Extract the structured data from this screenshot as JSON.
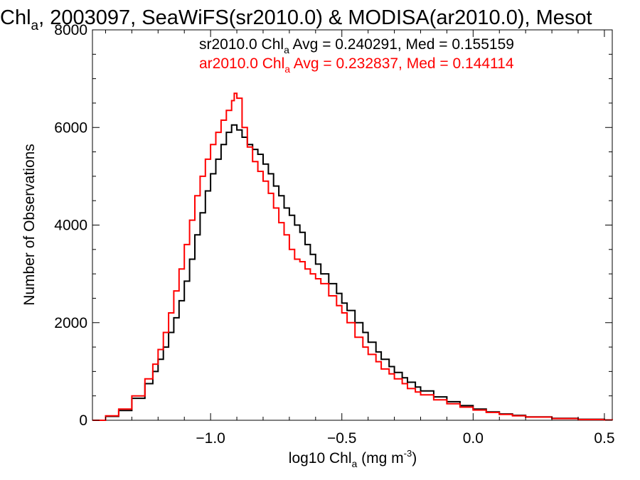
{
  "chart_data": {
    "type": "line",
    "title": {
      "main": "Chl",
      "sub": "a",
      "rest": ", 2003097, SeaWiFS(sr2010.0) & MODISA(ar2010.0), Mesot"
    },
    "xlabel": {
      "main": "log10 Chl",
      "sub": "a",
      "rest": " (mg m",
      "sup": "-3",
      "end": ")"
    },
    "ylabel": "Number of Observations",
    "xlim": [
      -1.45,
      0.53
    ],
    "ylim": [
      0,
      8000
    ],
    "x_ticks": [
      -1.0,
      -0.5,
      0.0,
      0.5
    ],
    "x_tick_labels": [
      "−1.0",
      "−0.5",
      "0.0",
      "0.5"
    ],
    "y_ticks": [
      0,
      2000,
      4000,
      6000,
      8000
    ],
    "y_tick_labels": [
      "0",
      "2000",
      "4000",
      "6000",
      "8000"
    ],
    "grid": false,
    "legend_placement": "top-right",
    "legend": [
      {
        "prefix": "sr2010.0 Chl",
        "sub": "a",
        "suffix": " Avg = 0.240291, Med = 0.155159",
        "color": "#000000"
      },
      {
        "prefix": "ar2010.0 Chl",
        "sub": "a",
        "suffix": " Avg = 0.232837, Med = 0.144114",
        "color": "#ff0000"
      }
    ],
    "series": [
      {
        "color": "#000000",
        "x": [
          -1.45,
          -1.4,
          -1.35,
          -1.3,
          -1.25,
          -1.22,
          -1.2,
          -1.18,
          -1.16,
          -1.14,
          -1.12,
          -1.1,
          -1.08,
          -1.06,
          -1.04,
          -1.02,
          -1.0,
          -0.98,
          -0.96,
          -0.94,
          -0.92,
          -0.9,
          -0.88,
          -0.86,
          -0.84,
          -0.82,
          -0.8,
          -0.78,
          -0.76,
          -0.74,
          -0.72,
          -0.7,
          -0.68,
          -0.66,
          -0.64,
          -0.62,
          -0.6,
          -0.58,
          -0.55,
          -0.52,
          -0.5,
          -0.48,
          -0.45,
          -0.42,
          -0.4,
          -0.37,
          -0.35,
          -0.32,
          -0.3,
          -0.27,
          -0.25,
          -0.22,
          -0.2,
          -0.15,
          -0.1,
          -0.05,
          0.0,
          0.05,
          0.1,
          0.15,
          0.2,
          0.3,
          0.4,
          0.5,
          0.53
        ],
        "y": [
          0,
          80,
          200,
          450,
          750,
          1000,
          1250,
          1500,
          1800,
          2100,
          2450,
          2850,
          3300,
          3800,
          4250,
          4700,
          5050,
          5350,
          5650,
          5900,
          6050,
          5950,
          5800,
          5650,
          5550,
          5450,
          5250,
          5050,
          4800,
          4600,
          4350,
          4200,
          4000,
          3850,
          3600,
          3400,
          3200,
          3000,
          2800,
          2600,
          2400,
          2250,
          2000,
          1800,
          1600,
          1400,
          1250,
          1100,
          980,
          870,
          780,
          680,
          600,
          480,
          380,
          300,
          230,
          170,
          130,
          100,
          70,
          40,
          20,
          8,
          5
        ]
      },
      {
        "color": "#ff0000",
        "x": [
          -1.45,
          -1.4,
          -1.35,
          -1.3,
          -1.25,
          -1.22,
          -1.2,
          -1.18,
          -1.16,
          -1.14,
          -1.12,
          -1.1,
          -1.08,
          -1.06,
          -1.04,
          -1.02,
          -1.0,
          -0.98,
          -0.96,
          -0.94,
          -0.92,
          -0.91,
          -0.9,
          -0.88,
          -0.86,
          -0.84,
          -0.82,
          -0.8,
          -0.78,
          -0.76,
          -0.74,
          -0.72,
          -0.7,
          -0.68,
          -0.66,
          -0.64,
          -0.62,
          -0.6,
          -0.58,
          -0.55,
          -0.52,
          -0.5,
          -0.48,
          -0.45,
          -0.42,
          -0.4,
          -0.37,
          -0.35,
          -0.32,
          -0.3,
          -0.27,
          -0.25,
          -0.22,
          -0.2,
          -0.15,
          -0.1,
          -0.05,
          0.0,
          0.05,
          0.1,
          0.15,
          0.2,
          0.3,
          0.4,
          0.5,
          0.53
        ],
        "y": [
          0,
          90,
          230,
          500,
          850,
          1150,
          1450,
          1800,
          2200,
          2650,
          3100,
          3600,
          4100,
          4600,
          5000,
          5350,
          5650,
          5900,
          6150,
          6350,
          6550,
          6700,
          6600,
          6000,
          5600,
          5300,
          5100,
          4900,
          4650,
          4350,
          4050,
          3800,
          3500,
          3300,
          3250,
          3100,
          3000,
          2900,
          2800,
          2550,
          2350,
          2200,
          2000,
          1700,
          1500,
          1350,
          1200,
          1050,
          950,
          850,
          750,
          650,
          580,
          520,
          420,
          340,
          270,
          210,
          160,
          120,
          90,
          65,
          35,
          15,
          6,
          4
        ]
      }
    ]
  }
}
